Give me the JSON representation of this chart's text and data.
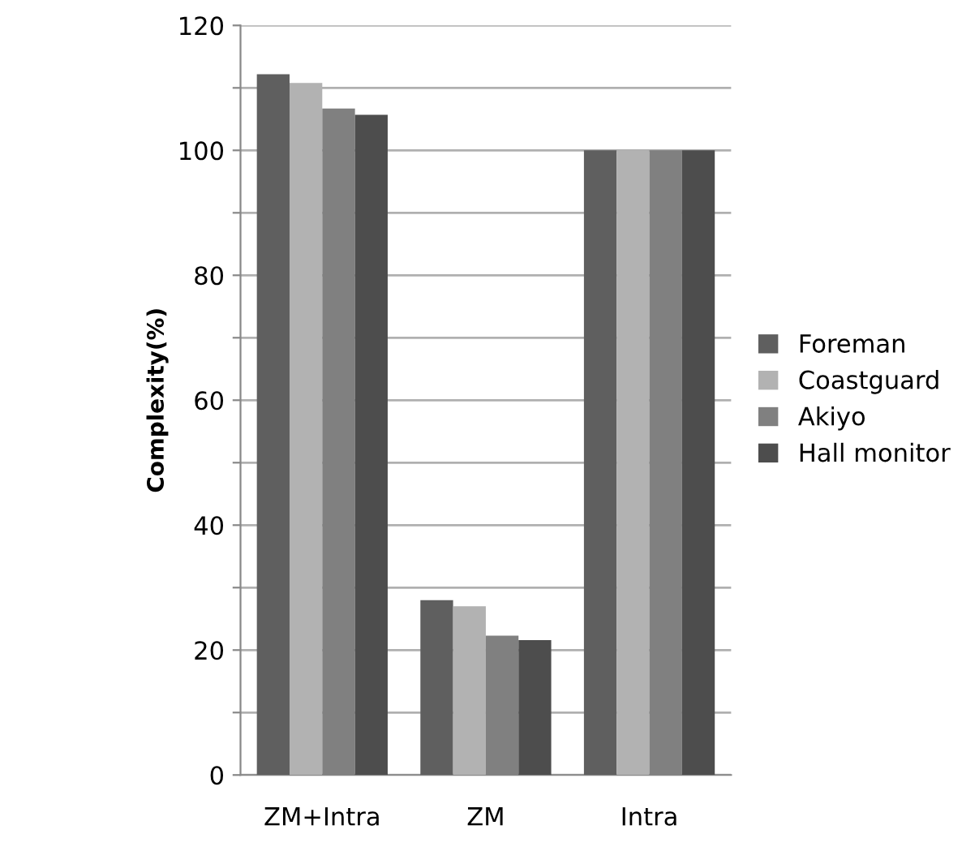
{
  "chart_data": {
    "type": "bar",
    "ylabel": "Complexity(%)",
    "categories": [
      "ZM+Intra",
      "ZM",
      "Intra"
    ],
    "series": [
      {
        "name": "Foreman",
        "color": "#5f5f5f",
        "values": [
          112.2,
          28,
          100
        ]
      },
      {
        "name": "Coastguard",
        "color": "#b2b2b2",
        "values": [
          110.8,
          27,
          100
        ]
      },
      {
        "name": "Akiyo",
        "color": "#808080",
        "values": [
          106.7,
          22.3,
          100
        ]
      },
      {
        "name": "Hall monitor",
        "color": "#4d4d4d",
        "values": [
          105.7,
          21.6,
          100
        ]
      }
    ],
    "ylim": [
      0,
      120
    ],
    "yticks": [
      0,
      {
        "value": 10,
        "label": null
      },
      20,
      {
        "value": 30,
        "label": null
      },
      40,
      {
        "value": 50,
        "label": null
      },
      60,
      {
        "value": 70,
        "label": null
      },
      80,
      {
        "value": 90,
        "label": null
      },
      100,
      {
        "value": 110,
        "label": null
      },
      120
    ],
    "grid": "y",
    "legend": "right"
  }
}
